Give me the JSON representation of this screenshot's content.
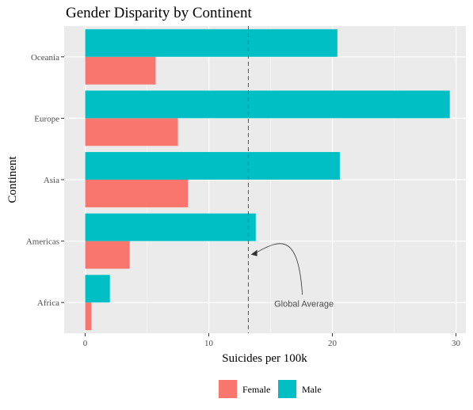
{
  "chart_data": {
    "type": "bar",
    "orientation": "horizontal",
    "title": "Gender Disparity by Continent",
    "xlabel": "Suicides per 100k",
    "ylabel": "Continent",
    "categories": [
      "Africa",
      "Americas",
      "Asia",
      "Europe",
      "Oceania"
    ],
    "series": [
      {
        "name": "Female",
        "values": [
          0.5,
          3.6,
          8.3,
          7.5,
          5.7
        ]
      },
      {
        "name": "Male",
        "values": [
          2.0,
          13.8,
          20.6,
          29.5,
          20.4
        ]
      }
    ],
    "xlim": [
      -1.7,
      30.8
    ],
    "xticks": [
      "0",
      "10",
      "20",
      "30"
    ],
    "xtick_values": [
      0,
      10,
      20,
      30
    ],
    "grid": true,
    "legend_position": "bottom",
    "reference_line": {
      "value": 13.2,
      "style": "dashed"
    },
    "annotation": {
      "text": "Global Average",
      "x": 17.7,
      "y": 0.05,
      "arrow_to_x": 13.4,
      "arrow_to_y": 0.78
    },
    "colors": {
      "Female": "#f8766d",
      "Male": "#00bfc4",
      "panel_background": "#ebebeb",
      "grid_major": "#ffffff",
      "grid_minor": "#f5f5f5",
      "reference_line": "#555555"
    }
  }
}
